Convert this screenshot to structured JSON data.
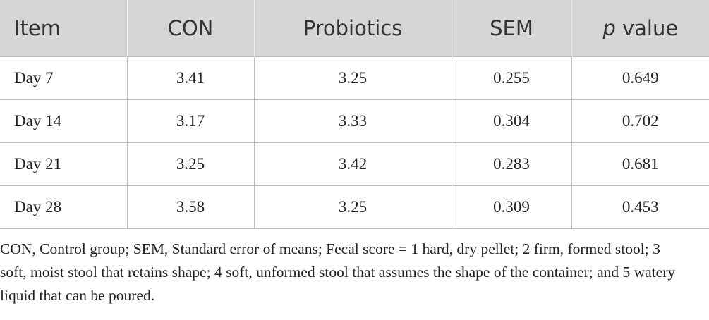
{
  "table": {
    "header": [
      "Item",
      "CON",
      "Probiotics",
      "SEM",
      {
        "italic": "p",
        "rest": "value"
      }
    ],
    "rows": [
      [
        "Day 7",
        "3.41",
        "3.25",
        "0.255",
        "0.649"
      ],
      [
        "Day 14",
        "3.17",
        "3.33",
        "0.304",
        "0.702"
      ],
      [
        "Day 21",
        "3.25",
        "3.42",
        "0.283",
        "0.681"
      ],
      [
        "Day 28",
        "3.58",
        "3.25",
        "0.309",
        "0.453"
      ]
    ]
  },
  "footnote": "CON, Control group; SEM, Standard error of means; Fecal score = 1 hard, dry pellet; 2 firm, formed stool; 3 soft, moist stool that retains shape; 4 soft, unformed stool that assumes the shape of the container; and 5 watery liquid that can be poured."
}
